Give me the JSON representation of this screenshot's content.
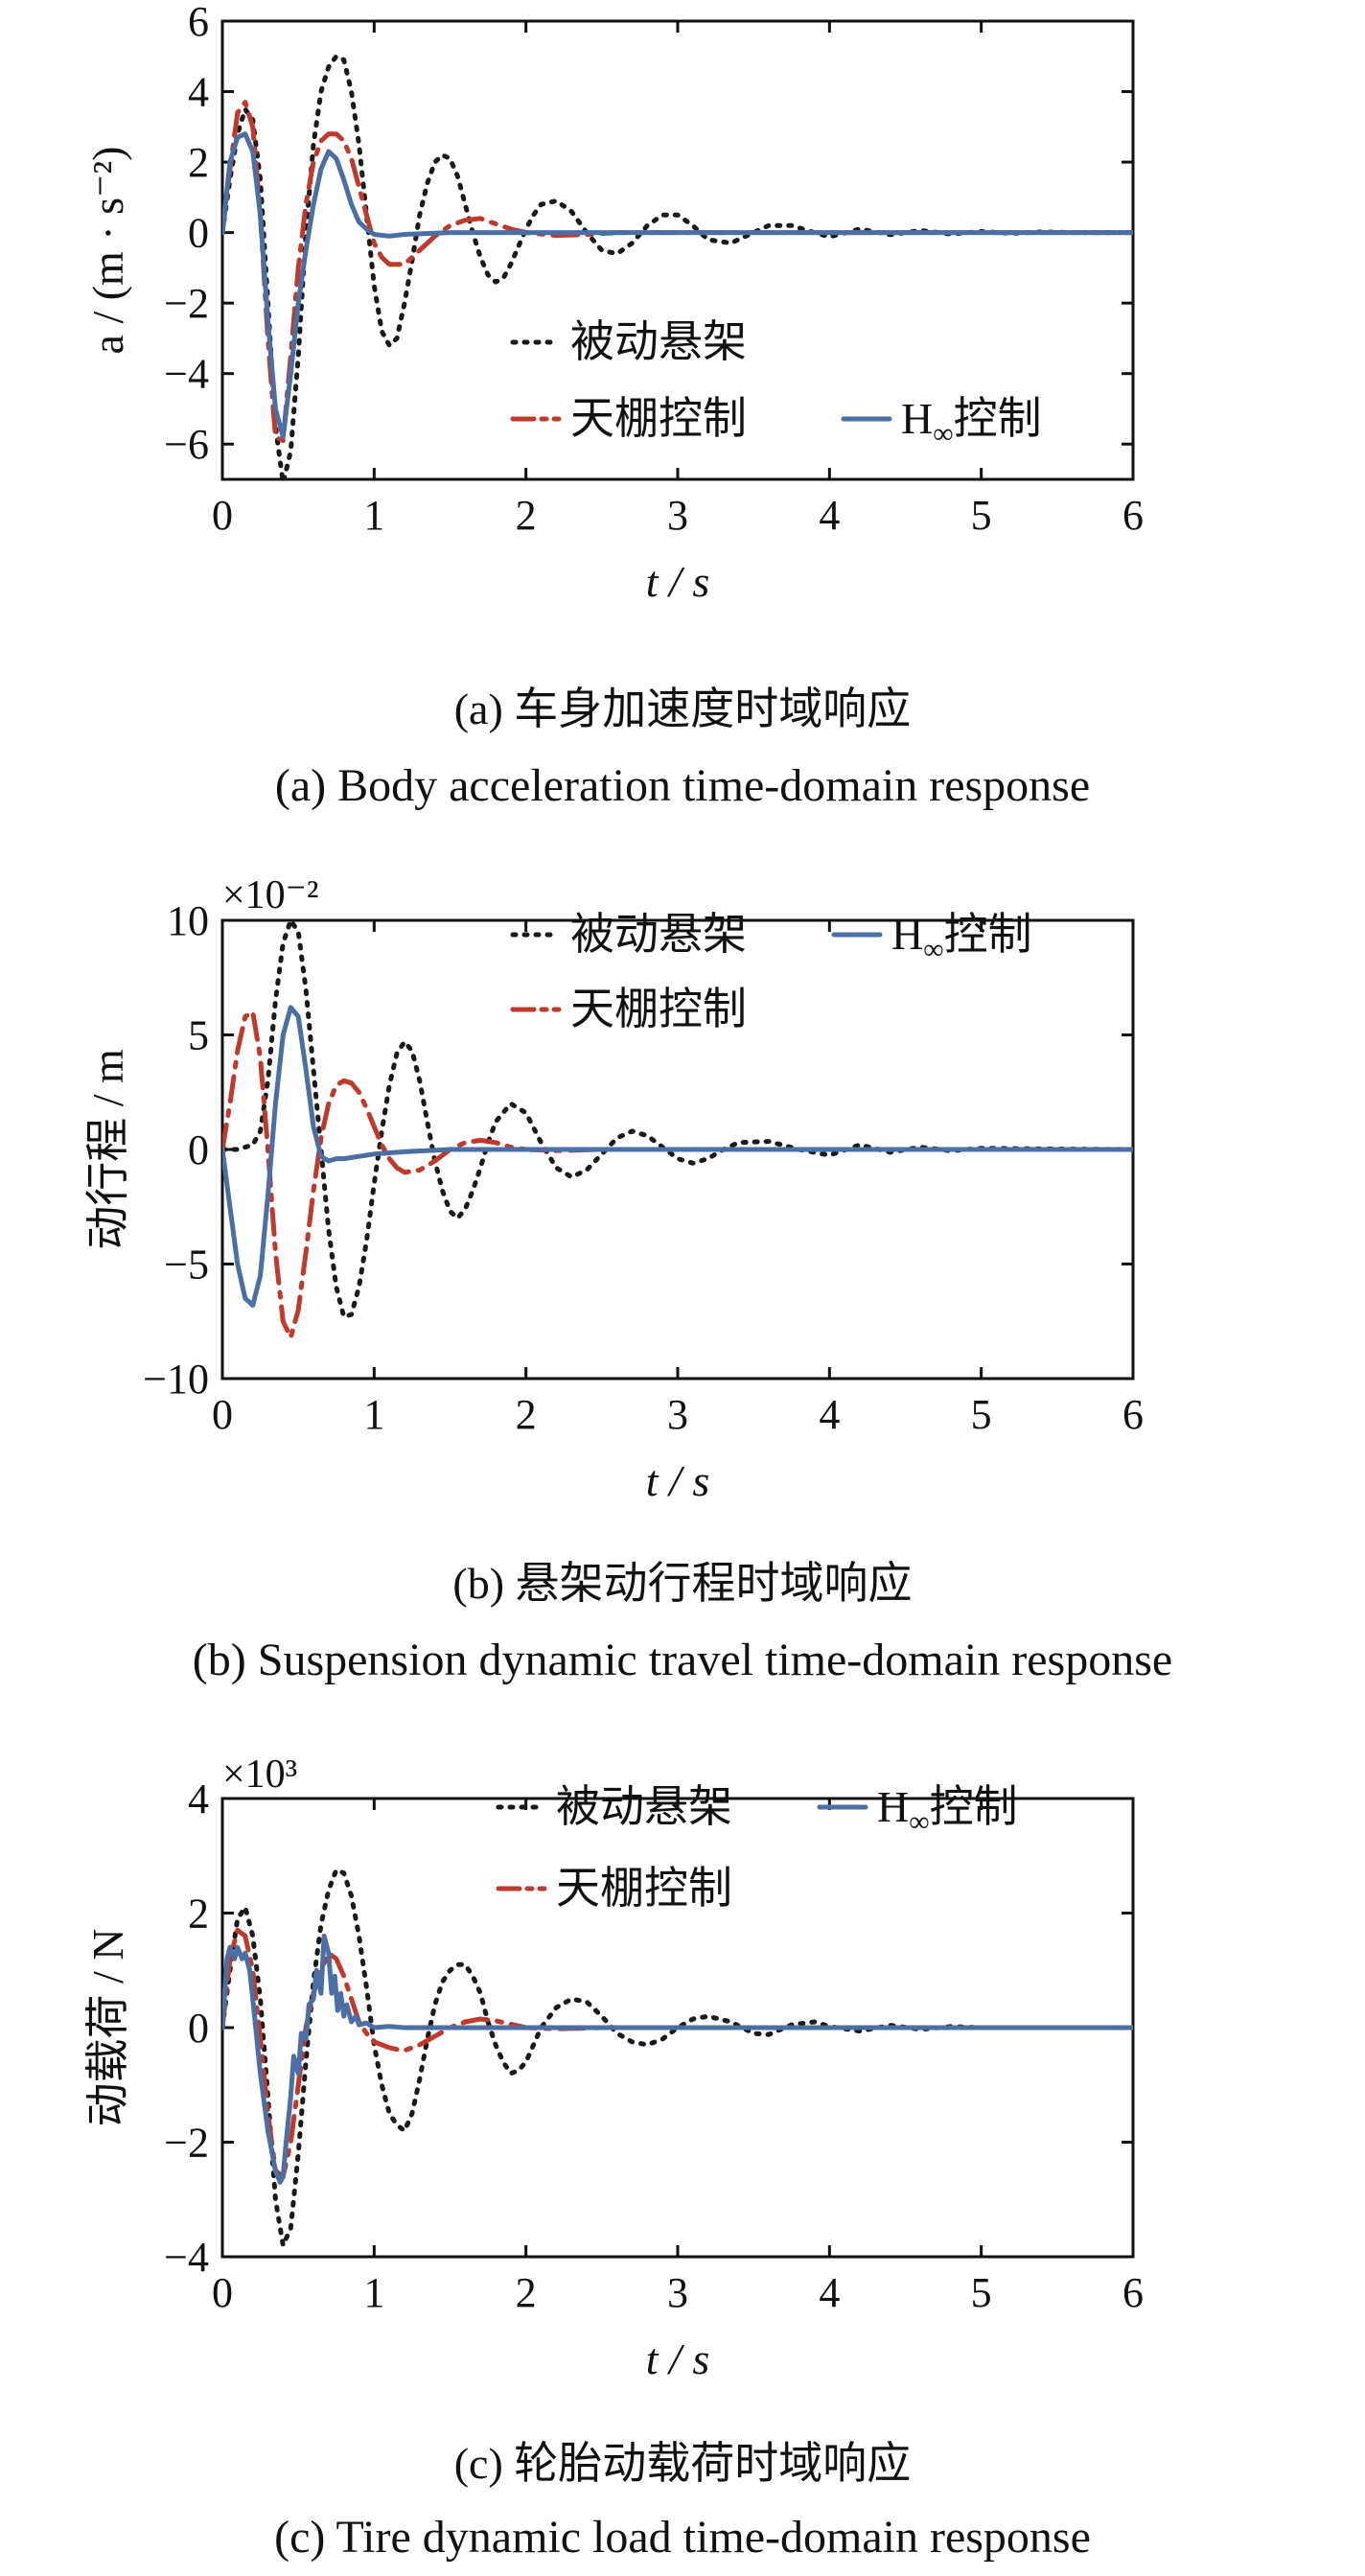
{
  "legend_labels": {
    "passive": "被动悬架",
    "skyhook": "天棚控制",
    "hinf_main": "H",
    "hinf_sub": "∞",
    "hinf_rest": "控制"
  },
  "series_colors": {
    "passive": "#1a1a1a",
    "skyhook": "#c0392b",
    "hinf": "#4a6fa5"
  },
  "chart_data": [
    {
      "type": "line",
      "id": "a",
      "caption_zh": "(a)  车身加速度时域响应",
      "caption_en": "(a)  Body acceleration time-domain response",
      "xlabel": "t / s",
      "ylabel": "a / (m · s⁻²)",
      "xlim": [
        0,
        6
      ],
      "ylim": [
        -7,
        6
      ],
      "xticks": [
        0,
        1,
        2,
        3,
        4,
        5,
        6
      ],
      "yticks": [
        -6,
        -4,
        -2,
        0,
        2,
        4,
        6
      ],
      "ytick_labels": [
        "−6",
        "−4",
        "−2",
        "0",
        "2",
        "4",
        "6"
      ],
      "multiplier": "",
      "legend_position": "lower-right",
      "series": [
        {
          "key": "passive",
          "name": "被动悬架",
          "x": [
            0,
            0.05,
            0.1,
            0.15,
            0.2,
            0.25,
            0.3,
            0.35,
            0.4,
            0.45,
            0.5,
            0.55,
            0.6,
            0.65,
            0.7,
            0.75,
            0.8,
            0.85,
            0.9,
            0.95,
            1.0,
            1.05,
            1.1,
            1.15,
            1.2,
            1.25,
            1.3,
            1.35,
            1.4,
            1.45,
            1.5,
            1.55,
            1.6,
            1.65,
            1.7,
            1.75,
            1.8,
            1.85,
            1.9,
            1.95,
            2.0,
            2.05,
            2.1,
            2.2,
            2.3,
            2.4,
            2.5,
            2.6,
            2.7,
            2.8,
            2.9,
            3.0,
            3.1,
            3.2,
            3.35,
            3.5,
            3.6,
            3.75,
            3.9,
            4.0,
            4.2,
            4.4,
            4.6,
            4.8,
            5.0,
            5.2,
            5.4,
            5.6,
            5.8,
            6.0
          ],
          "y": [
            0,
            1.5,
            2.8,
            3.5,
            3.2,
            1.5,
            -2.0,
            -5.5,
            -7.1,
            -6.2,
            -3.5,
            0,
            2.5,
            4.0,
            4.7,
            5.0,
            4.9,
            4.0,
            2.5,
            0.5,
            -1.5,
            -2.8,
            -3.2,
            -3.0,
            -2.0,
            -0.8,
            0.5,
            1.4,
            2.0,
            2.2,
            2.1,
            1.6,
            0.8,
            0,
            -0.7,
            -1.2,
            -1.4,
            -1.3,
            -0.9,
            -0.4,
            0.1,
            0.5,
            0.8,
            0.9,
            0.6,
            0,
            -0.5,
            -0.6,
            -0.3,
            0.2,
            0.5,
            0.5,
            0.2,
            -0.2,
            -0.3,
            0,
            0.2,
            0.2,
            0,
            -0.12,
            0.1,
            -0.06,
            0.06,
            -0.04,
            0.03,
            -0.02,
            0.02,
            0,
            0,
            0
          ]
        },
        {
          "key": "skyhook",
          "name": "天棚控制",
          "x": [
            0,
            0.05,
            0.1,
            0.15,
            0.2,
            0.25,
            0.3,
            0.35,
            0.4,
            0.45,
            0.5,
            0.55,
            0.6,
            0.65,
            0.7,
            0.75,
            0.8,
            0.85,
            0.9,
            0.95,
            1.0,
            1.05,
            1.1,
            1.2,
            1.3,
            1.4,
            1.5,
            1.6,
            1.7,
            1.8,
            1.9,
            2.0,
            2.2,
            2.4,
            2.6,
            3.0,
            4.0,
            5.0,
            6.0
          ],
          "y": [
            0,
            1.8,
            3.4,
            3.7,
            3.0,
            0.5,
            -3.0,
            -5.8,
            -5.9,
            -3.5,
            -1.0,
            0.8,
            2.0,
            2.6,
            2.8,
            2.8,
            2.6,
            2.1,
            1.3,
            0.5,
            -0.3,
            -0.7,
            -0.9,
            -0.9,
            -0.5,
            -0.1,
            0.2,
            0.35,
            0.4,
            0.25,
            0.1,
            0,
            -0.08,
            -0.05,
            0,
            0,
            0,
            0,
            0
          ]
        },
        {
          "key": "hinf",
          "name": "H∞控制",
          "x": [
            0,
            0.05,
            0.1,
            0.15,
            0.2,
            0.25,
            0.3,
            0.35,
            0.4,
            0.45,
            0.5,
            0.55,
            0.6,
            0.65,
            0.7,
            0.75,
            0.8,
            0.85,
            0.9,
            0.95,
            1.0,
            1.1,
            1.2,
            1.5,
            2.0,
            3.0,
            4.0,
            5.0,
            6.0
          ],
          "y": [
            0,
            2.0,
            2.7,
            2.8,
            2.3,
            0.5,
            -2.5,
            -5.0,
            -5.8,
            -4.0,
            -2.0,
            -0.5,
            0.8,
            1.8,
            2.3,
            2.1,
            1.5,
            0.8,
            0.3,
            0.1,
            -0.05,
            -0.1,
            -0.05,
            0,
            0,
            0,
            0,
            0,
            0
          ]
        }
      ]
    },
    {
      "type": "line",
      "id": "b",
      "caption_zh": "(b)  悬架动行程时域响应",
      "caption_en": "(b)  Suspension dynamic travel time-domain response",
      "xlabel": "t / s",
      "ylabel": "动行程 / m",
      "xlim": [
        0,
        6
      ],
      "ylim": [
        -10,
        10
      ],
      "xticks": [
        0,
        1,
        2,
        3,
        4,
        5,
        6
      ],
      "yticks": [
        -10,
        -5,
        0,
        5,
        10
      ],
      "ytick_labels": [
        "−10",
        "−5",
        "0",
        "5",
        "10"
      ],
      "multiplier": "×10⁻²",
      "legend_position": "top-right",
      "series": [
        {
          "key": "passive",
          "name": "被动悬架",
          "x": [
            0,
            0.1,
            0.2,
            0.25,
            0.3,
            0.35,
            0.4,
            0.45,
            0.5,
            0.55,
            0.6,
            0.65,
            0.7,
            0.75,
            0.8,
            0.85,
            0.9,
            0.95,
            1.0,
            1.05,
            1.1,
            1.15,
            1.2,
            1.25,
            1.3,
            1.35,
            1.4,
            1.45,
            1.5,
            1.55,
            1.6,
            1.65,
            1.7,
            1.75,
            1.8,
            1.9,
            2.0,
            2.1,
            2.2,
            2.3,
            2.4,
            2.5,
            2.6,
            2.7,
            2.8,
            2.9,
            3.0,
            3.1,
            3.2,
            3.3,
            3.4,
            3.6,
            3.8,
            4.0,
            4.2,
            4.4,
            4.6,
            4.8,
            5.0,
            5.5,
            6.0
          ],
          "y": [
            0,
            0,
            0.2,
            0.8,
            3.0,
            6.5,
            9.0,
            10.0,
            9.5,
            7.0,
            3.5,
            0,
            -3.5,
            -6.0,
            -7.3,
            -7.2,
            -6.0,
            -4.0,
            -1.5,
            0.8,
            2.8,
            4.2,
            4.7,
            4.3,
            3.0,
            1.2,
            -0.5,
            -1.8,
            -2.7,
            -3.0,
            -2.6,
            -1.8,
            -0.8,
            0.3,
            1.2,
            2.0,
            1.6,
            0.3,
            -0.8,
            -1.2,
            -0.9,
            -0.2,
            0.5,
            0.8,
            0.6,
            0.1,
            -0.4,
            -0.6,
            -0.4,
            0,
            0.3,
            0.35,
            0,
            -0.25,
            0.2,
            -0.12,
            0.1,
            -0.06,
            0.05,
            0.02,
            0
          ]
        },
        {
          "key": "skyhook",
          "name": "天棚控制",
          "x": [
            0,
            0.05,
            0.1,
            0.15,
            0.2,
            0.25,
            0.3,
            0.35,
            0.4,
            0.45,
            0.5,
            0.55,
            0.6,
            0.65,
            0.7,
            0.75,
            0.8,
            0.85,
            0.9,
            0.95,
            1.0,
            1.05,
            1.1,
            1.15,
            1.2,
            1.3,
            1.4,
            1.5,
            1.6,
            1.7,
            1.8,
            1.9,
            2.0,
            2.2,
            2.5,
            3.0,
            4.0,
            5.0,
            6.0
          ],
          "y": [
            0,
            2.0,
            4.3,
            5.8,
            6.0,
            4.0,
            0,
            -4.5,
            -7.5,
            -8.2,
            -7.0,
            -4.5,
            -1.8,
            0.5,
            2.0,
            2.8,
            3.0,
            2.9,
            2.5,
            1.8,
            1.0,
            0.2,
            -0.4,
            -0.8,
            -1.0,
            -0.9,
            -0.5,
            0,
            0.3,
            0.4,
            0.3,
            0.1,
            0,
            -0.05,
            0,
            0,
            0,
            0,
            0
          ]
        },
        {
          "key": "hinf",
          "name": "H∞控制",
          "x": [
            0,
            0.05,
            0.1,
            0.15,
            0.2,
            0.25,
            0.3,
            0.35,
            0.4,
            0.45,
            0.5,
            0.55,
            0.6,
            0.65,
            0.7,
            0.75,
            0.8,
            0.9,
            1.0,
            1.2,
            1.5,
            2.0,
            3.0,
            4.0,
            5.0,
            6.0
          ],
          "y": [
            0,
            -2.5,
            -5.0,
            -6.5,
            -6.8,
            -5.5,
            -2.0,
            2.0,
            5.0,
            6.2,
            5.8,
            3.5,
            1.0,
            -0.3,
            -0.5,
            -0.4,
            -0.4,
            -0.3,
            -0.2,
            -0.1,
            0,
            0,
            0,
            0,
            0,
            0
          ]
        }
      ]
    },
    {
      "type": "line",
      "id": "c",
      "caption_zh": "(c)  轮胎动载荷时域响应",
      "caption_en": "(c)  Tire dynamic load time-domain response",
      "xlabel": "t / s",
      "ylabel": "动载荷 / N",
      "xlim": [
        0,
        6
      ],
      "ylim": [
        -4,
        4
      ],
      "xticks": [
        0,
        1,
        2,
        3,
        4,
        5,
        6
      ],
      "yticks": [
        -4,
        -2,
        0,
        2,
        4
      ],
      "ytick_labels": [
        "−4",
        "−2",
        "0",
        "2",
        "4"
      ],
      "multiplier": "×10³",
      "legend_position": "top-right",
      "series": [
        {
          "key": "passive",
          "name": "被动悬架",
          "x": [
            0,
            0.05,
            0.1,
            0.15,
            0.2,
            0.25,
            0.3,
            0.35,
            0.4,
            0.45,
            0.5,
            0.55,
            0.6,
            0.65,
            0.7,
            0.75,
            0.8,
            0.85,
            0.9,
            0.95,
            1.0,
            1.05,
            1.1,
            1.15,
            1.2,
            1.25,
            1.3,
            1.35,
            1.4,
            1.45,
            1.5,
            1.55,
            1.6,
            1.65,
            1.7,
            1.75,
            1.8,
            1.85,
            1.9,
            1.95,
            2.0,
            2.05,
            2.1,
            2.2,
            2.3,
            2.4,
            2.5,
            2.6,
            2.7,
            2.8,
            2.9,
            3.0,
            3.1,
            3.2,
            3.35,
            3.5,
            3.6,
            3.75,
            3.9,
            4.0,
            4.2,
            4.4,
            4.6,
            4.8,
            5.0,
            5.5,
            6.0
          ],
          "y": [
            0,
            1.0,
            1.9,
            2.1,
            1.6,
            0.5,
            -1.2,
            -3.0,
            -3.8,
            -3.5,
            -2.2,
            -0.6,
            0.8,
            1.8,
            2.4,
            2.75,
            2.7,
            2.3,
            1.6,
            0.7,
            -0.3,
            -1.0,
            -1.5,
            -1.7,
            -1.8,
            -1.5,
            -0.9,
            -0.2,
            0.4,
            0.8,
            1.0,
            1.1,
            1.1,
            0.9,
            0.6,
            0.1,
            -0.3,
            -0.6,
            -0.8,
            -0.75,
            -0.6,
            -0.3,
            0,
            0.35,
            0.5,
            0.45,
            0.2,
            -0.1,
            -0.25,
            -0.3,
            -0.2,
            0,
            0.15,
            0.2,
            0.1,
            -0.1,
            -0.12,
            0.05,
            0.1,
            0.02,
            -0.06,
            0.04,
            -0.03,
            0.02,
            0,
            0,
            0
          ]
        },
        {
          "key": "skyhook",
          "name": "天棚控制",
          "x": [
            0,
            0.05,
            0.1,
            0.15,
            0.2,
            0.25,
            0.3,
            0.35,
            0.4,
            0.45,
            0.5,
            0.55,
            0.6,
            0.65,
            0.7,
            0.75,
            0.8,
            0.85,
            0.9,
            0.95,
            1.0,
            1.05,
            1.1,
            1.15,
            1.2,
            1.3,
            1.4,
            1.5,
            1.6,
            1.7,
            1.8,
            1.9,
            2.0,
            2.2,
            2.5,
            3.0,
            4.0,
            5.0,
            6.0
          ],
          "y": [
            0,
            1.2,
            1.7,
            1.6,
            1.0,
            -0.2,
            -1.5,
            -2.5,
            -2.6,
            -2.0,
            -1.0,
            0,
            0.6,
            1.0,
            1.3,
            1.2,
            0.9,
            0.5,
            0.1,
            -0.1,
            -0.25,
            -0.3,
            -0.35,
            -0.38,
            -0.4,
            -0.3,
            -0.15,
            0,
            0.1,
            0.15,
            0.12,
            0.06,
            0,
            -0.02,
            0,
            0,
            0,
            0,
            0
          ]
        },
        {
          "key": "hinf",
          "name": "H∞控制",
          "x": [
            0,
            0.03,
            0.05,
            0.08,
            0.1,
            0.13,
            0.15,
            0.18,
            0.2,
            0.25,
            0.3,
            0.35,
            0.38,
            0.4,
            0.42,
            0.45,
            0.47,
            0.5,
            0.52,
            0.55,
            0.57,
            0.6,
            0.62,
            0.65,
            0.67,
            0.7,
            0.72,
            0.74,
            0.76,
            0.78,
            0.8,
            0.82,
            0.85,
            0.88,
            0.9,
            0.95,
            1.0,
            1.1,
            1.2,
            1.5,
            2.0,
            3.0,
            4.0,
            5.0,
            6.0
          ],
          "y": [
            0,
            1.2,
            1.4,
            1.2,
            1.4,
            1.2,
            1.3,
            1.0,
            0.5,
            -0.8,
            -1.8,
            -2.5,
            -2.7,
            -2.6,
            -2.0,
            -1.2,
            -0.5,
            -0.8,
            -0.1,
            -0.2,
            0.4,
            0.5,
            1.0,
            0.6,
            1.6,
            1.3,
            0.6,
            0.9,
            0.3,
            0.6,
            0.2,
            0.4,
            0.1,
            0.2,
            0.05,
            0.08,
            0,
            0.02,
            0,
            0,
            0,
            0,
            0,
            0,
            0
          ]
        }
      ]
    }
  ]
}
